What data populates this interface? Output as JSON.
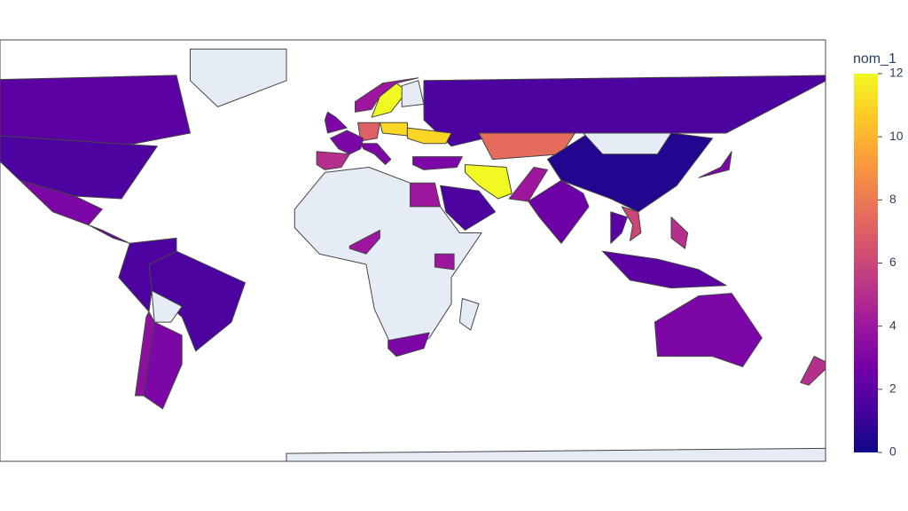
{
  "chart_data": {
    "type": "choropleth",
    "colorbar_title": "nom_1",
    "clim": [
      0,
      12
    ],
    "cticks": [
      0,
      2,
      4,
      6,
      8,
      10,
      12
    ],
    "colorscale": [
      "#0d0887",
      "#46039f",
      "#7201a8",
      "#9c179e",
      "#bd3786",
      "#d8576b",
      "#ed7953",
      "#fb9f3a",
      "#fdca26",
      "#f0f921"
    ],
    "null_color": "#e5ecf6",
    "border_color": "#444444",
    "values": [
      2,
      1.5,
      null,
      3,
      2.5,
      1.5,
      1.5,
      null,
      3,
      3.5,
      1.5,
      7.5,
      0.5,
      null,
      12,
      1.5,
      2.5,
      12,
      4,
      null,
      11,
      7,
      3,
      5,
      3,
      11,
      3,
      3,
      4,
      null,
      4,
      4,
      3,
      null,
      2,
      5,
      3,
      6,
      3,
      5,
      null,
      2,
      4
    ]
  }
}
